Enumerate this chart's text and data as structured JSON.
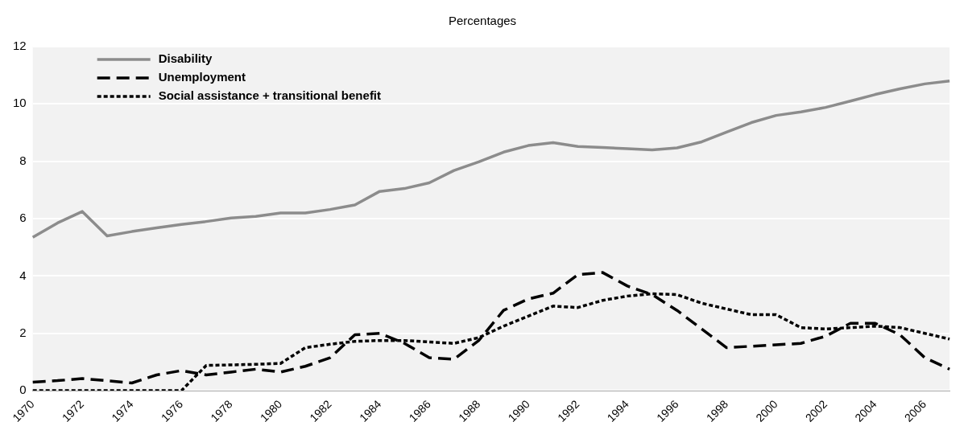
{
  "chart_data": {
    "type": "line",
    "title": "Percentages",
    "categories": [
      "1970",
      null,
      "1972",
      null,
      "1974",
      null,
      "1976",
      null,
      "1978",
      null,
      "1980",
      null,
      "1982",
      null,
      "1984",
      null,
      "1986",
      null,
      "1988",
      null,
      "1990",
      null,
      "1992",
      null,
      "1994",
      null,
      "1996",
      null,
      "1998",
      null,
      "2000",
      null,
      "2002",
      null,
      "2004",
      null,
      "2006",
      null
    ],
    "ylim": [
      0,
      12
    ],
    "yticks": [
      0,
      2,
      4,
      6,
      8,
      10,
      12
    ],
    "grid": "y",
    "legend": "top left",
    "marker": "none",
    "series": [
      {
        "name": "Disability",
        "color": "#8c8c8c",
        "line_style": "solid",
        "values": [
          5.35,
          5.85,
          6.25,
          5.4,
          5.55,
          5.68,
          5.8,
          5.9,
          6.02,
          6.08,
          6.2,
          6.2,
          6.32,
          6.48,
          6.95,
          7.05,
          7.25,
          7.68,
          7.98,
          8.32,
          8.55,
          8.65,
          8.52,
          8.48,
          8.44,
          8.4,
          8.47,
          8.68,
          9.02,
          9.35,
          9.6,
          9.72,
          9.88,
          10.1,
          10.33,
          10.53,
          10.7,
          10.8
        ]
      },
      {
        "name": "Unemployment",
        "color": "#000000",
        "line_style": "dashed",
        "values": [
          0.3,
          0.35,
          0.42,
          0.35,
          0.27,
          0.55,
          0.7,
          0.55,
          0.65,
          0.75,
          0.65,
          0.85,
          1.15,
          1.95,
          2.0,
          1.65,
          1.15,
          1.1,
          1.75,
          2.8,
          3.2,
          3.4,
          4.05,
          4.12,
          3.65,
          3.35,
          2.8,
          2.15,
          1.5,
          1.55,
          1.6,
          1.65,
          1.9,
          2.35,
          2.35,
          1.95,
          1.15,
          0.75
        ]
      },
      {
        "name": "Social assistance + transitional benefit",
        "color": "#000000",
        "line_style": "dotted",
        "values": [
          0,
          0,
          0,
          0,
          0,
          0,
          0,
          0.88,
          0.9,
          0.92,
          0.95,
          1.5,
          1.62,
          1.72,
          1.75,
          1.75,
          1.7,
          1.65,
          1.85,
          2.25,
          2.6,
          2.95,
          2.9,
          3.15,
          3.3,
          3.38,
          3.35,
          3.05,
          2.85,
          2.65,
          2.65,
          2.2,
          2.15,
          2.2,
          2.25,
          2.2,
          2.0,
          1.8
        ]
      }
    ]
  }
}
